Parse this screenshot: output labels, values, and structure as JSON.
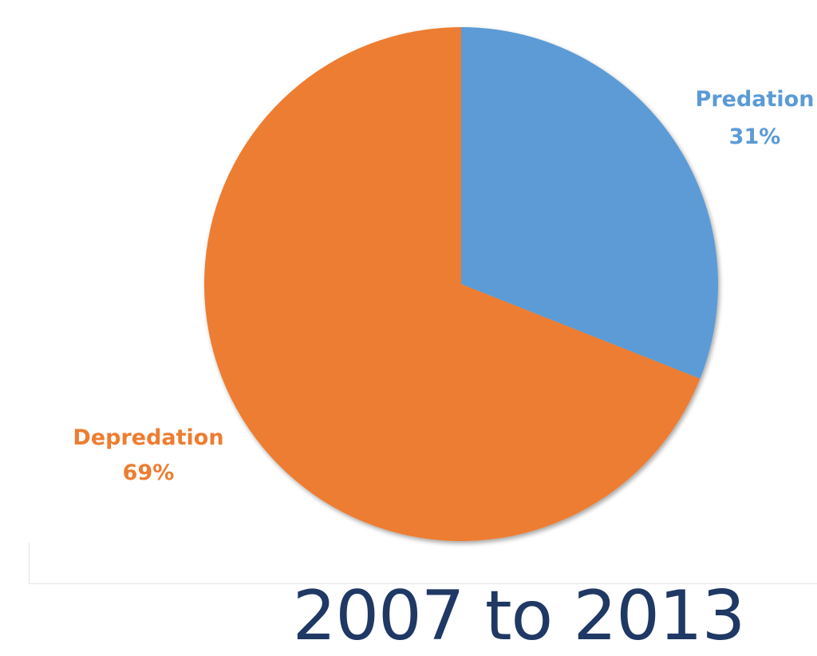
{
  "chart_data": {
    "type": "pie",
    "slices": [
      {
        "label": "Predation",
        "value": 31,
        "value_text": "31%",
        "color": "#5b9bd5"
      },
      {
        "label": "Depredation",
        "value": 69,
        "value_text": "69%",
        "color": "#ed7d31"
      }
    ],
    "start_angle": "12 o'clock, clockwise",
    "legend": "none (data labels on chart)"
  },
  "caption": {
    "text": "2007 to 2013",
    "color": "#1f3864"
  }
}
